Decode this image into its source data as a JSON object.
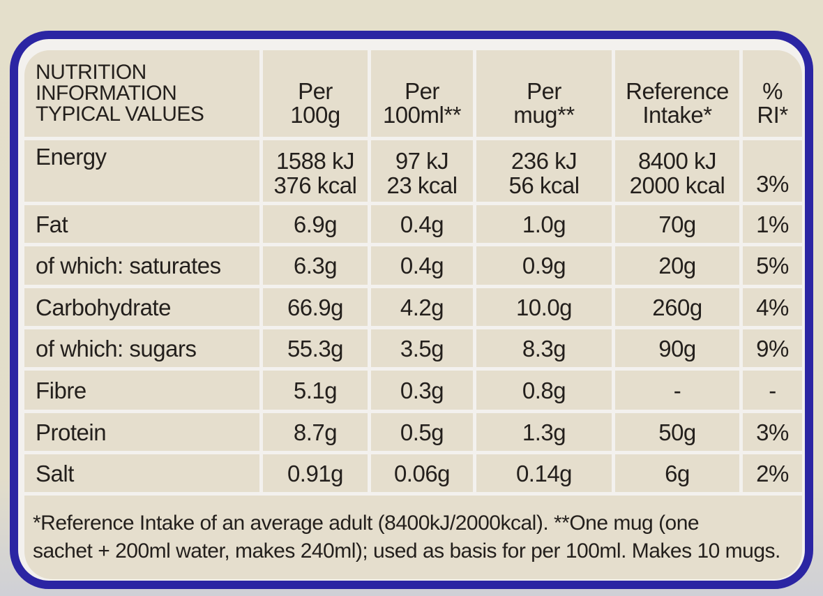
{
  "header": {
    "title_lines": [
      "NUTRITION",
      "INFORMATION",
      "TYPICAL VALUES"
    ],
    "columns": [
      [
        "Per",
        "100g"
      ],
      [
        "Per",
        "100ml**"
      ],
      [
        "Per",
        "mug**"
      ],
      [
        "Reference",
        "Intake*"
      ],
      [
        "%",
        "RI*"
      ]
    ]
  },
  "energy": {
    "label": "Energy",
    "per100g": [
      "1588 kJ",
      "376 kcal"
    ],
    "per100ml": [
      "97 kJ",
      "23 kcal"
    ],
    "permug": [
      "236 kJ",
      "56 kcal"
    ],
    "ri": [
      "8400 kJ",
      "2000 kcal"
    ],
    "pct": "3%"
  },
  "rows": [
    {
      "label": "Fat",
      "v": [
        "6.9g",
        "0.4g",
        "1.0g",
        "70g",
        "1%"
      ]
    },
    {
      "label": "of which: saturates",
      "v": [
        "6.3g",
        "0.4g",
        "0.9g",
        "20g",
        "5%"
      ]
    },
    {
      "label": "Carbohydrate",
      "v": [
        "66.9g",
        "4.2g",
        "10.0g",
        "260g",
        "4%"
      ]
    },
    {
      "label": "of which: sugars",
      "v": [
        "55.3g",
        "3.5g",
        "8.3g",
        "90g",
        "9%"
      ]
    },
    {
      "label": "Fibre",
      "v": [
        "5.1g",
        "0.3g",
        "0.8g",
        "-",
        "-"
      ]
    },
    {
      "label": "Protein",
      "v": [
        "8.7g",
        "0.5g",
        "1.3g",
        "50g",
        "3%"
      ]
    },
    {
      "label": "Salt",
      "v": [
        "0.91g",
        "0.06g",
        "0.14g",
        "6g",
        "2%"
      ]
    }
  ],
  "footnote": {
    "line1": "*Reference Intake of an average adult (8400kJ/2000kcal). **One mug (one",
    "line2": "sachet + 200ml water, makes 240ml); used as basis for per 100ml. Makes 10 mugs."
  },
  "colors": {
    "border": "#2b25a3",
    "cell": "#e5decd",
    "grid": "#f3f1ee",
    "text": "#231f1c"
  }
}
